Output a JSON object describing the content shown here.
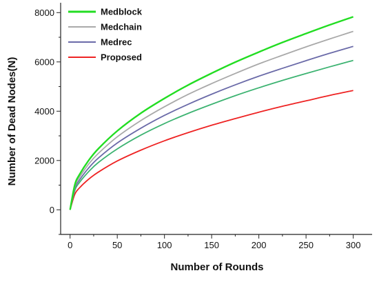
{
  "chart_data": {
    "type": "line",
    "title": "",
    "xlabel": "Number of Rounds",
    "ylabel": "Number of Dead Nodes(N)",
    "xlim": [
      -10,
      320
    ],
    "ylim": [
      -1000,
      8400
    ],
    "x_ticks": [
      0,
      50,
      100,
      150,
      200,
      250,
      300
    ],
    "y_ticks": [
      0,
      2000,
      4000,
      6000,
      8000
    ],
    "x_tick_labels": [
      "0",
      "50",
      "100",
      "150",
      "200",
      "250",
      "300"
    ],
    "y_tick_labels": [
      "0",
      "2000",
      "4000",
      "6000",
      "8000"
    ],
    "grid": false,
    "legend_position": "top-left",
    "x": [
      0,
      5,
      10,
      20,
      30,
      50,
      75,
      100,
      125,
      150,
      175,
      200,
      225,
      250,
      275,
      300
    ],
    "series": [
      {
        "name": "Medblock",
        "color": "#22dd22",
        "values": [
          0,
          1010,
          1430,
          2020,
          2480,
          3200,
          3920,
          4520,
          5060,
          5540,
          5990,
          6400,
          6790,
          7150,
          7500,
          7830
        ]
      },
      {
        "name": "Medchain",
        "color": "#a9a9a9",
        "values": [
          0,
          940,
          1320,
          1870,
          2290,
          2960,
          3620,
          4180,
          4680,
          5120,
          5530,
          5920,
          6270,
          6610,
          6930,
          7240
        ]
      },
      {
        "name": "Medrec",
        "color": "#6a6aa8",
        "values": [
          0,
          860,
          1210,
          1710,
          2100,
          2710,
          3310,
          3830,
          4280,
          4690,
          5070,
          5420,
          5740,
          6050,
          6350,
          6630
        ]
      },
      {
        "name": "",
        "color": "#3cb371",
        "values": [
          0,
          780,
          1110,
          1560,
          1920,
          2470,
          3030,
          3500,
          3910,
          4280,
          4630,
          4950,
          5250,
          5530,
          5800,
          6060
        ]
      },
      {
        "name": "Proposed",
        "color": "#ee2222",
        "values": [
          0,
          630,
          890,
          1250,
          1530,
          1980,
          2420,
          2800,
          3130,
          3430,
          3700,
          3960,
          4200,
          4420,
          4640,
          4840
        ]
      }
    ]
  }
}
